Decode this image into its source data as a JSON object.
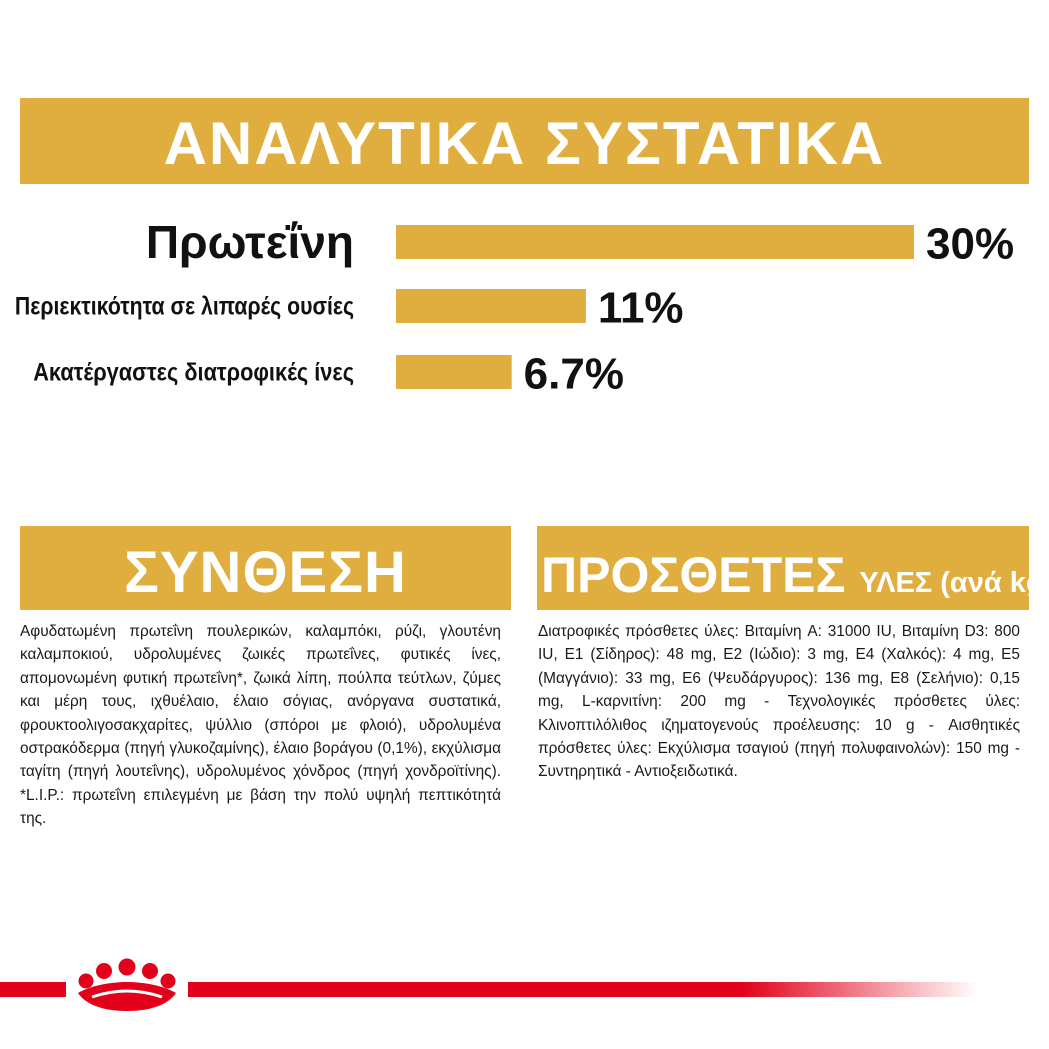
{
  "header": {
    "title": "ΑΝΑΛΥΤΙΚΑ ΣΥΣΤΑΤΙΚΑ"
  },
  "chart_data": {
    "type": "bar",
    "orientation": "horizontal",
    "categories": [
      "Πρωτεΐνη",
      "Περιεκτικότητα σε λιπαρές ουσίες",
      "Ακατέργαστες διατροφικές ίνες"
    ],
    "values": [
      30,
      11,
      6.7
    ],
    "value_labels": [
      "30%",
      "11%",
      "6.7%"
    ],
    "unit": "%",
    "xlim": [
      0,
      30
    ],
    "bar_color": "#e0ae3f",
    "grid": false
  },
  "composition": {
    "title": "ΣΥΝΘΕΣΗ",
    "text": "Αφυδατωμένη πρωτεΐνη πουλερικών, καλαμπόκι, ρύζι, γλουτένη καλαμποκιού, υδρολυμένες ζωικές πρωτεΐνες, φυτικές ίνες, απομονωμένη φυτική πρωτεΐνη*, ζωικά λίπη, πούλπα τεύτλων, ζύμες και μέρη τους, ιχθυέλαιο, έλαιο σόγιας, ανόργανα συστατικά, φρουκτοολιγοσακχαρίτες, ψύλλιο (σπόροι με φλοιό), υδρολυμένα οστρακόδερμα (πηγή γλυκοζαμίνης), έλαιο βοράγου (0,1%), εκχύλισμα ταγίτη (πηγή λουτεΐνης), υδρολυμένος χόνδρος (πηγή χονδροϊτίνης). *L.I.P.: πρωτεΐνη επιλεγμένη με βάση την πολύ υψηλή πεπτικότητά της."
  },
  "additives": {
    "title_main": "ΠΡΟΣΘΕΤΕΣ",
    "title_sub": "ΥΛΕΣ (ανά kg)",
    "text": "Διατροφικές πρόσθετες ύλες: Βιταμίνη A: 31000 IU, Βιταμίνη D3: 800 IU, E1 (Σίδηρος): 48 mg, E2 (Ιώδιο): 3 mg, E4 (Χαλκός): 4 mg, E5 (Μαγγάνιο): 33 mg, E6 (Ψευδάργυρος): 136 mg, E8 (Σελήνιο): 0,15 mg, L-καρνιτίνη: 200 mg - Τεχνολογικές πρόσθετες ύλες: Κλινοπτιλόλιθος ιζηματογενούς προέλευσης: 10 g - Αισθητικές πρόσθετες ύλες: Εκχύλισμα τσαγιού (πηγή πολυφαινολών): 150 mg - Συντηρητικά - Αντιοξειδωτικά."
  },
  "footer": {
    "logo_icon": "royal-canin-crown-icon",
    "line_color": "#e2001a"
  }
}
